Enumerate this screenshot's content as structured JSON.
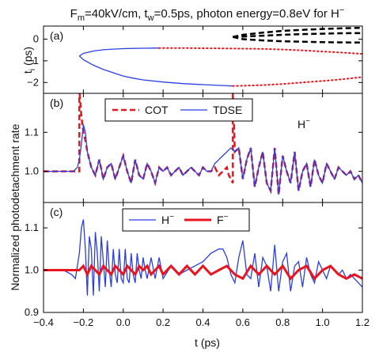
{
  "figure": {
    "title_main": "F",
    "title_sub_m": "m",
    "title_mid": "=40kV/cm, t",
    "title_sub_w": "w",
    "title_end": "=0.5ps, photon energy=0.8eV for H",
    "title_sup": "−",
    "xlabel": "t (ps)",
    "shared_ylabel": "Normalized photodetachment rate"
  },
  "colors": {
    "blue": "#2b3ee6",
    "red": "#e8141e",
    "black": "#000000"
  },
  "chart_data": [
    {
      "type": "line",
      "panel": "(a)",
      "ylabel_main": "t",
      "ylabel_sub": "i",
      "ylabel_unit": " (ps)",
      "xlim": [
        -0.4,
        1.2
      ],
      "ylim": [
        -2.5,
        0.6
      ],
      "yticks": [
        0,
        -1,
        -2
      ],
      "series": [
        {
          "style": "blue-solid",
          "x": [
            -0.22,
            -0.2,
            -0.15,
            -0.1,
            -0.05,
            0.0,
            0.05,
            0.1,
            0.15,
            0.18
          ],
          "y": [
            -0.78,
            -0.66,
            -0.55,
            -0.49,
            -0.46,
            -0.44,
            -0.43,
            -0.42,
            -0.415,
            -0.41
          ]
        },
        {
          "style": "blue-solid",
          "x": [
            -0.22,
            -0.2,
            -0.15,
            -0.1,
            -0.05,
            0.0,
            0.05,
            0.1,
            0.2,
            0.3,
            0.4,
            0.5,
            0.55
          ],
          "y": [
            -0.78,
            -0.95,
            -1.2,
            -1.4,
            -1.55,
            -1.7,
            -1.8,
            -1.88,
            -1.98,
            -2.05,
            -2.1,
            -2.14,
            -2.16
          ]
        },
        {
          "style": "red-dotted",
          "x": [
            0.18,
            0.3,
            0.4,
            0.5,
            0.6,
            0.7,
            0.8,
            0.9,
            1.0,
            1.1,
            1.2
          ],
          "y": [
            -0.41,
            -0.41,
            -0.42,
            -0.43,
            -0.44,
            -0.45,
            -0.48,
            -0.52,
            -0.57,
            -0.62,
            -0.68
          ]
        },
        {
          "style": "red-dotted",
          "x": [
            0.55,
            0.6,
            0.7,
            0.8,
            0.9,
            1.0,
            1.1,
            1.2
          ],
          "y": [
            -2.16,
            -2.15,
            -2.12,
            -2.07,
            -2.0,
            -1.93,
            -1.85,
            -1.75
          ]
        },
        {
          "style": "black-dashed",
          "x": [
            0.55,
            0.6,
            0.7,
            0.8,
            0.9,
            1.0,
            1.1,
            1.2
          ],
          "y": [
            0.1,
            0.2,
            0.3,
            0.38,
            0.43,
            0.47,
            0.5,
            0.52
          ]
        },
        {
          "style": "black-dashed",
          "x": [
            0.55,
            0.6,
            0.7,
            0.8,
            0.9,
            1.0,
            1.1,
            1.2
          ],
          "y": [
            0.1,
            0.0,
            -0.06,
            -0.1,
            -0.12,
            -0.14,
            -0.15,
            -0.16
          ]
        },
        {
          "style": "black-dashed",
          "x": [
            0.55,
            0.6,
            0.7,
            0.8,
            0.9,
            1.0,
            1.1,
            1.2
          ],
          "y": [
            0.1,
            0.12,
            0.16,
            0.2,
            0.23,
            0.25,
            0.27,
            0.28
          ]
        }
      ]
    },
    {
      "type": "line",
      "panel": "(b)",
      "xlim": [
        -0.4,
        1.2
      ],
      "ylim": [
        0.92,
        1.2
      ],
      "yticks": [
        1.0,
        1.1
      ],
      "annotation_text": "H",
      "annotation_sup": "−",
      "legend": [
        "COT",
        "TDSE"
      ],
      "series": [
        {
          "name": "COT",
          "style": "red-dashed",
          "x": [
            -0.4,
            -0.3,
            -0.25,
            -0.22,
            -0.22,
            -0.21,
            -0.2,
            -0.19,
            -0.18,
            -0.16,
            -0.14,
            -0.12,
            -0.1,
            -0.08,
            -0.06,
            -0.04,
            -0.02,
            0.0,
            0.02,
            0.04,
            0.06,
            0.08,
            0.1,
            0.12,
            0.14,
            0.16,
            0.18,
            0.2,
            0.22,
            0.24,
            0.26,
            0.28,
            0.3,
            0.32,
            0.34,
            0.36,
            0.38,
            0.4,
            0.42,
            0.44,
            0.46,
            0.48,
            0.5,
            0.52,
            0.53,
            0.54,
            0.55,
            0.55,
            0.56,
            0.58,
            0.6,
            0.62,
            0.64,
            0.66,
            0.68,
            0.7,
            0.72,
            0.74,
            0.76,
            0.78,
            0.8,
            0.82,
            0.84,
            0.86,
            0.88,
            0.9,
            0.92,
            0.94,
            0.96,
            0.98,
            1.0,
            1.02,
            1.04,
            1.06,
            1.08,
            1.1,
            1.12,
            1.14,
            1.16,
            1.18,
            1.2
          ],
          "y": [
            1.0,
            1.0,
            1.0,
            1.0,
            1.21,
            1.14,
            1.1,
            1.08,
            1.05,
            1.01,
            0.99,
            1.03,
            0.98,
            1.01,
            1.02,
            0.98,
            1.01,
            1.04,
            1.0,
            0.97,
            1.03,
            0.99,
            0.98,
            1.02,
            1.0,
            0.97,
            1.01,
            1.0,
            1.01,
            0.99,
            1.0,
            1.01,
            0.99,
            1.0,
            1.01,
            1.0,
            0.99,
            1.01,
            1.0,
            1.0,
            1.01,
            0.99,
            1.0,
            1.01,
            0.99,
            0.98,
            0.97,
            1.21,
            1.05,
            1.06,
            0.98,
            1.03,
            1.06,
            0.96,
            1.01,
            1.05,
            0.97,
            0.95,
            1.06,
            0.94,
            1.04,
            1.0,
            0.97,
            1.05,
            0.95,
            1.0,
            1.02,
            0.96,
            1.03,
            0.99,
            0.97,
            1.02,
            1.0,
            0.98,
            1.01,
            1.0,
            0.99,
            1.0,
            0.98,
            0.99,
            0.97
          ]
        },
        {
          "name": "TDSE",
          "style": "blue-solid",
          "x": [
            -0.4,
            -0.3,
            -0.25,
            -0.23,
            -0.22,
            -0.21,
            -0.2,
            -0.19,
            -0.18,
            -0.16,
            -0.14,
            -0.12,
            -0.1,
            -0.08,
            -0.06,
            -0.04,
            -0.02,
            0.0,
            0.02,
            0.04,
            0.06,
            0.08,
            0.1,
            0.12,
            0.14,
            0.16,
            0.18,
            0.2,
            0.22,
            0.24,
            0.26,
            0.28,
            0.3,
            0.32,
            0.34,
            0.36,
            0.38,
            0.4,
            0.42,
            0.44,
            0.46,
            0.48,
            0.5,
            0.52,
            0.54,
            0.56,
            0.58,
            0.6,
            0.62,
            0.64,
            0.66,
            0.68,
            0.7,
            0.72,
            0.74,
            0.76,
            0.78,
            0.8,
            0.82,
            0.84,
            0.86,
            0.88,
            0.9,
            0.92,
            0.94,
            0.96,
            0.98,
            1.0,
            1.02,
            1.04,
            1.06,
            1.08,
            1.1,
            1.12,
            1.14,
            1.16,
            1.18,
            1.2
          ],
          "y": [
            1.0,
            1.0,
            1.0,
            1.01,
            1.03,
            1.07,
            1.12,
            1.1,
            1.05,
            1.01,
            0.99,
            1.03,
            0.98,
            1.01,
            1.02,
            0.98,
            1.01,
            1.04,
            1.0,
            0.97,
            1.03,
            0.99,
            0.98,
            1.02,
            1.0,
            0.97,
            1.01,
            1.0,
            1.01,
            0.99,
            1.0,
            1.01,
            0.99,
            1.0,
            1.01,
            1.0,
            0.99,
            1.01,
            1.0,
            1.0,
            1.02,
            1.03,
            1.04,
            1.05,
            1.06,
            1.05,
            1.06,
            0.98,
            1.03,
            1.06,
            0.96,
            1.01,
            1.05,
            0.97,
            0.95,
            1.06,
            0.94,
            1.04,
            1.0,
            0.97,
            1.05,
            0.95,
            1.0,
            1.02,
            0.96,
            1.03,
            0.99,
            0.97,
            1.02,
            1.0,
            0.98,
            1.01,
            1.0,
            0.99,
            1.0,
            0.98,
            0.99,
            0.97
          ]
        }
      ]
    },
    {
      "type": "line",
      "panel": "(c)",
      "xlim": [
        -0.4,
        1.2
      ],
      "ylim": [
        0.9,
        1.16
      ],
      "yticks": [
        0.9,
        1.0,
        1.1
      ],
      "xticks": [
        -0.4,
        -0.2,
        0.0,
        0.2,
        0.4,
        0.6,
        0.8,
        1.0,
        1.2
      ],
      "xticklabels": [
        "−0.4",
        "−0.2",
        "0.0",
        "0.2",
        "0.4",
        "0.6",
        "0.8",
        "1.0",
        "1.2"
      ],
      "legend_h": "H",
      "legend_f": "F",
      "legend_sup": "−",
      "series": [
        {
          "name": "H−",
          "style": "blue-solid",
          "x": [
            -0.4,
            -0.3,
            -0.26,
            -0.24,
            -0.22,
            -0.21,
            -0.2,
            -0.19,
            -0.18,
            -0.17,
            -0.16,
            -0.15,
            -0.14,
            -0.13,
            -0.12,
            -0.11,
            -0.1,
            -0.09,
            -0.08,
            -0.07,
            -0.06,
            -0.05,
            -0.04,
            -0.03,
            -0.02,
            -0.01,
            0.0,
            0.01,
            0.02,
            0.03,
            0.04,
            0.05,
            0.06,
            0.07,
            0.08,
            0.09,
            0.1,
            0.11,
            0.12,
            0.14,
            0.16,
            0.18,
            0.2,
            0.24,
            0.28,
            0.32,
            0.36,
            0.4,
            0.44,
            0.48,
            0.5,
            0.52,
            0.54,
            0.56,
            0.58,
            0.6,
            0.62,
            0.64,
            0.66,
            0.68,
            0.7,
            0.72,
            0.74,
            0.76,
            0.78,
            0.8,
            0.82,
            0.84,
            0.86,
            0.88,
            0.9,
            0.92,
            0.94,
            0.96,
            0.98,
            1.0,
            1.02,
            1.04,
            1.06,
            1.08,
            1.1,
            1.12,
            1.14,
            1.16,
            1.18,
            1.2
          ],
          "y": [
            1.0,
            1.0,
            0.99,
            0.98,
            1.04,
            1.1,
            1.12,
            1.05,
            0.94,
            1.08,
            1.05,
            0.94,
            1.09,
            1.04,
            0.95,
            1.08,
            1.02,
            0.96,
            1.07,
            1.0,
            0.96,
            1.05,
            0.99,
            0.97,
            1.05,
            0.98,
            0.97,
            1.05,
            0.98,
            0.97,
            1.04,
            0.99,
            0.97,
            1.04,
            1.0,
            0.98,
            1.03,
            1.0,
            0.98,
            1.03,
            0.98,
            1.03,
            0.98,
            1.01,
            0.99,
            1.0,
            1.01,
            1.02,
            1.04,
            1.05,
            1.05,
            1.03,
            0.99,
            0.97,
            1.03,
            1.07,
            0.99,
            0.98,
            1.04,
            0.96,
            1.03,
            1.01,
            0.95,
            1.06,
            0.95,
            1.02,
            1.04,
            0.95,
            1.01,
            1.02,
            0.96,
            1.03,
            0.99,
            0.97,
            1.02,
            1.0,
            0.98,
            1.01,
            1.0,
            0.99,
            1.0,
            0.98,
            0.99,
            0.98,
            0.97,
            0.96
          ]
        },
        {
          "name": "F−",
          "style": "red-thick",
          "x": [
            -0.4,
            -0.3,
            -0.25,
            -0.22,
            -0.2,
            -0.18,
            -0.16,
            -0.14,
            -0.12,
            -0.1,
            -0.08,
            -0.06,
            -0.04,
            -0.02,
            0.0,
            0.02,
            0.04,
            0.06,
            0.08,
            0.1,
            0.12,
            0.14,
            0.16,
            0.18,
            0.2,
            0.24,
            0.28,
            0.32,
            0.36,
            0.4,
            0.44,
            0.48,
            0.52,
            0.56,
            0.6,
            0.64,
            0.68,
            0.72,
            0.76,
            0.8,
            0.84,
            0.88,
            0.92,
            0.96,
            1.0,
            1.04,
            1.08,
            1.12,
            1.16,
            1.2
          ],
          "y": [
            1.0,
            1.0,
            1.0,
            1.0,
            1.01,
            0.99,
            1.01,
            1.0,
            0.99,
            1.01,
            1.0,
            0.99,
            1.01,
            1.0,
            0.99,
            1.01,
            1.0,
            0.99,
            1.01,
            1.0,
            1.01,
            0.99,
            1.0,
            1.01,
            0.99,
            1.01,
            0.99,
            1.01,
            0.99,
            1.01,
            0.99,
            1.0,
            1.01,
            0.99,
            0.98,
            1.01,
            0.99,
            1.01,
            0.99,
            1.01,
            0.98,
            1.0,
            1.01,
            0.98,
            1.0,
            1.01,
            0.99,
            0.98,
            0.99,
            0.98
          ]
        }
      ]
    }
  ]
}
